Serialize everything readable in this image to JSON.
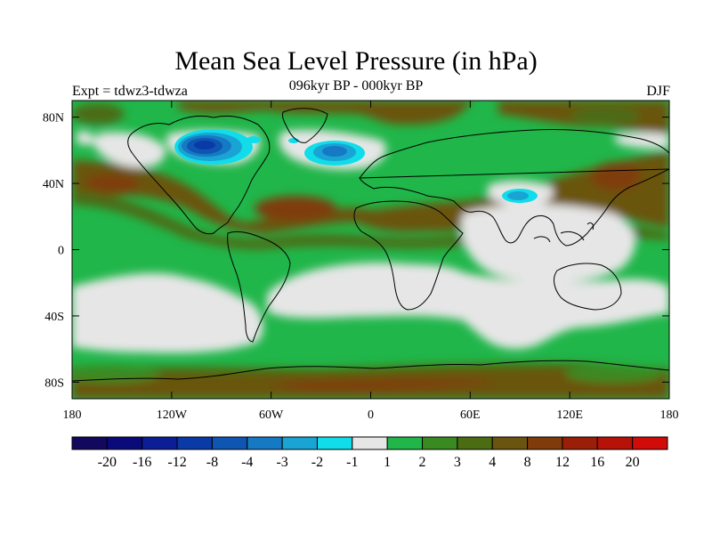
{
  "title": "Mean Sea Level Pressure (in hPa)",
  "subtitle": "096kyr BP - 000kyr BP",
  "experiment_label": "Expt = tdwz3-tdwza",
  "season_label": "DJF",
  "map": {
    "lat_ticks": [
      {
        "value": 80,
        "label": "80N"
      },
      {
        "value": 40,
        "label": "40N"
      },
      {
        "value": 0,
        "label": "0"
      },
      {
        "value": -40,
        "label": "40S"
      },
      {
        "value": -80,
        "label": "80S"
      }
    ],
    "lon_ticks": [
      {
        "value": -180,
        "label": "180"
      },
      {
        "value": -120,
        "label": "120W"
      },
      {
        "value": -60,
        "label": "60W"
      },
      {
        "value": 0,
        "label": "0"
      },
      {
        "value": 60,
        "label": "60E"
      },
      {
        "value": 120,
        "label": "120E"
      },
      {
        "value": 180,
        "label": "180"
      }
    ]
  },
  "colorbar": {
    "colors": [
      "#12085e",
      "#0b0a7a",
      "#0b1e96",
      "#0a3aa6",
      "#0f55b2",
      "#1679c4",
      "#19a4d4",
      "#10dde9",
      "#e6e6e6",
      "#20b64a",
      "#3a8a22",
      "#4c6c14",
      "#6a5410",
      "#7f3c0a",
      "#9a1e08",
      "#b71208",
      "#d10a0a"
    ],
    "labels": [
      "-20",
      "-16",
      "-12",
      "-8",
      "-4",
      "-3",
      "-2",
      "-1",
      "1",
      "2",
      "3",
      "4",
      "8",
      "12",
      "16",
      "20"
    ],
    "color_names": {
      "white_band": "#e6e6e6",
      "light_green": "#20b64a",
      "mid_green": "#3a8a22",
      "olive": "#4c6c14",
      "brown": "#6a5410",
      "dark_brown": "#7f3c0a",
      "cyan": "#10dde9",
      "light_blue": "#19a4d4",
      "blue": "#1679c4",
      "dark_blue": "#0a3aa6"
    }
  }
}
